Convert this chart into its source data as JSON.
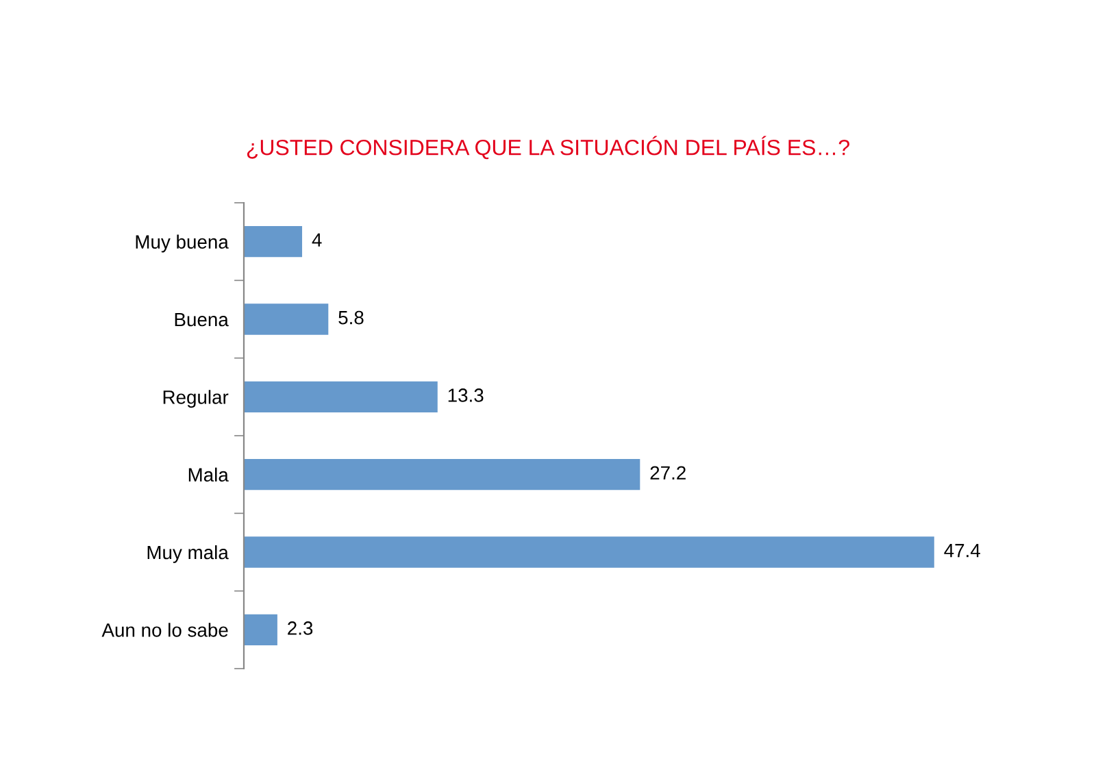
{
  "chart_data": {
    "type": "bar",
    "orientation": "horizontal",
    "title": "¿USTED CONSIDERA QUE LA SITUACIÓN DEL PAÍS ES…?",
    "categories": [
      "Muy buena",
      "Buena",
      "Regular",
      "Mala",
      "Muy mala",
      "Aun no lo sabe"
    ],
    "values": [
      4,
      5.8,
      13.3,
      27.2,
      47.4,
      2.3
    ],
    "color": "#6699cc",
    "data_labels": true,
    "grid": false,
    "legend": false
  }
}
